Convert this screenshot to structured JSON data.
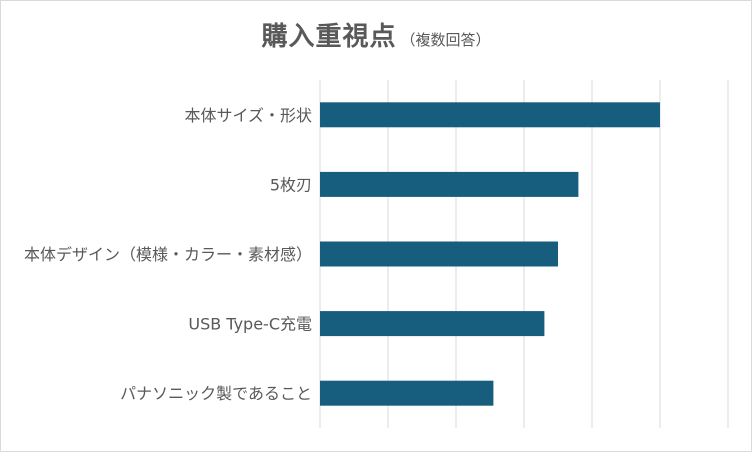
{
  "title": {
    "main": "購入重視点",
    "sub": "（複数回答）"
  },
  "colors": {
    "bar": "#165d7e",
    "grid": "#d9d9d9",
    "label": "#595959"
  },
  "chart_data": {
    "type": "bar",
    "orientation": "horizontal",
    "title": "購入重視点（複数回答）",
    "categories": [
      "本体サイズ・形状",
      "5枚刃",
      "本体デザイン（模様・カラー・素材感）",
      "USB Type-C充電",
      "パナソニック製であること"
    ],
    "values": [
      50,
      38,
      35,
      33,
      25.5
    ],
    "xlim": [
      0,
      60
    ],
    "grid": true,
    "legend": "none"
  }
}
